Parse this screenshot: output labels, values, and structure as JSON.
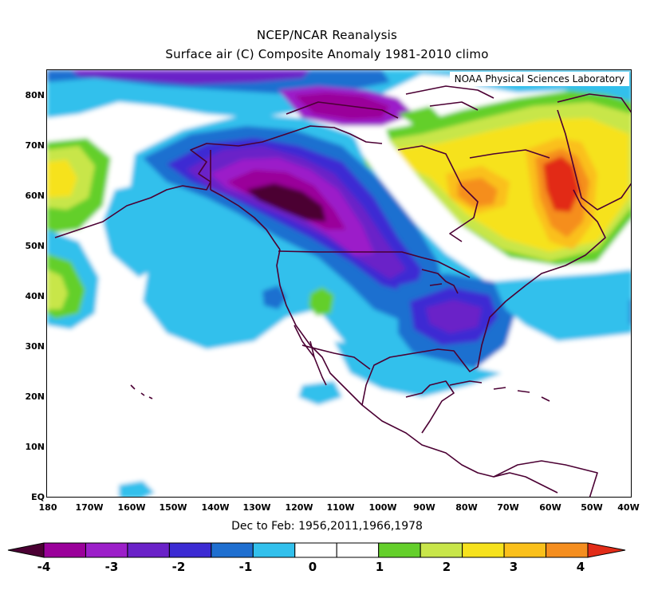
{
  "title": "NCEP/NCAR Reanalysis",
  "subtitle": "Surface air (C) Composite Anomaly 1981-2010 climo",
  "credit": "NOAA Physical Sciences Laboratory",
  "period": "Dec to Feb: 1956,2011,1966,1978",
  "lat_labels": [
    "80N",
    "70N",
    "60N",
    "50N",
    "40N",
    "30N",
    "20N",
    "10N",
    "EQ"
  ],
  "lon_labels": [
    "180",
    "170W",
    "160W",
    "150W",
    "140W",
    "130W",
    "120W",
    "110W",
    "100W",
    "90W",
    "80W",
    "70W",
    "60W",
    "50W",
    "40W"
  ],
  "colorbar": {
    "colors": [
      "#4b0033",
      "#9a009a",
      "#9c1fc9",
      "#6a22c8",
      "#3c2bd3",
      "#1f6fd0",
      "#32c0ec",
      "#ffffff",
      "#ffffff",
      "#64cf2b",
      "#c8e64a",
      "#f6e21d",
      "#fac01b",
      "#f58e1f",
      "#e22c18"
    ],
    "tick_labels": [
      "-4",
      "-3",
      "-2",
      "-1",
      "0",
      "1",
      "2",
      "3",
      "4"
    ]
  },
  "map": {
    "min_anomaly": "-4",
    "max_anomaly": "4"
  }
}
